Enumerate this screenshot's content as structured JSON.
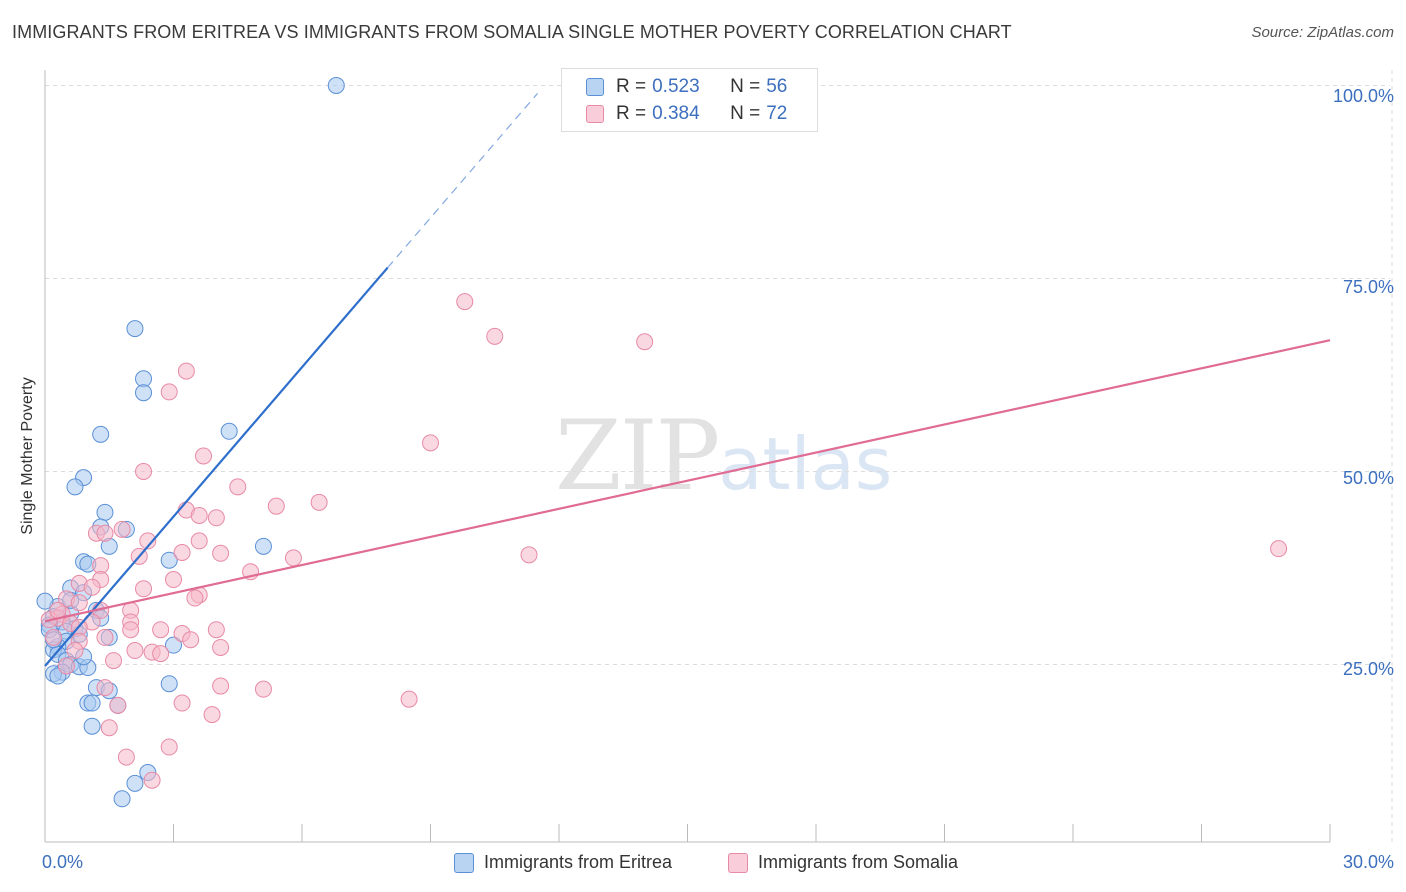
{
  "title": "IMMIGRANTS FROM ERITREA VS IMMIGRANTS FROM SOMALIA SINGLE MOTHER POVERTY CORRELATION CHART",
  "source": "Source: ZipAtlas.com",
  "watermark": {
    "zip": "ZIP",
    "atlas": "atlas"
  },
  "colors": {
    "eritrea_fill": "#a8c8f0",
    "eritrea_stroke": "#5b90d6",
    "eritrea_line": "#2f6fcc",
    "somalia_fill": "#f5b8c9",
    "somalia_stroke": "#e78aa6",
    "somalia_line": "#e06b93",
    "tick_text": "#3c6fbe",
    "grid": "#dcdcdc"
  },
  "legend_top": [
    {
      "r_label": "R =",
      "r_value": "0.523",
      "n_label": "N =",
      "n_value": "56"
    },
    {
      "r_label": "R =",
      "r_value": "0.384",
      "n_label": "N =",
      "n_value": "72"
    }
  ],
  "legend_bottom": [
    "Immigrants from Eritrea",
    "Immigrants from Somalia"
  ],
  "chart_data": {
    "type": "scatter",
    "title": "IMMIGRANTS FROM ERITREA VS IMMIGRANTS FROM SOMALIA SINGLE MOTHER POVERTY CORRELATION CHART",
    "xlabel": "",
    "ylabel": "Single Mother Poverty",
    "xlim": [
      0,
      30
    ],
    "ylim": [
      2,
      102
    ],
    "x_ticks_labeled": [
      "0.0%",
      "30.0%"
    ],
    "y_ticks": [
      {
        "value": 25,
        "label": "25.0%"
      },
      {
        "value": 50,
        "label": "50.0%"
      },
      {
        "value": 75,
        "label": "75.0%"
      },
      {
        "value": 100,
        "label": "100.0%"
      }
    ],
    "grid": true,
    "legend_position": "bottom",
    "series": [
      {
        "name": "Immigrants from Eritrea",
        "r": 0.523,
        "n": 56,
        "trend": {
          "x0": 0.0,
          "y0": 24.8,
          "x1": 8.0,
          "y1": 76.4,
          "dashed_to_x": 11.5
        },
        "points": [
          [
            6.8,
            100.0
          ],
          [
            2.1,
            68.5
          ],
          [
            2.3,
            62.0
          ],
          [
            2.3,
            60.2
          ],
          [
            4.3,
            55.2
          ],
          [
            1.3,
            54.8
          ],
          [
            0.9,
            49.2
          ],
          [
            0.7,
            48.0
          ],
          [
            1.4,
            44.7
          ],
          [
            1.9,
            42.5
          ],
          [
            1.3,
            42.8
          ],
          [
            5.1,
            40.3
          ],
          [
            1.5,
            40.3
          ],
          [
            0.9,
            38.3
          ],
          [
            1.0,
            38.0
          ],
          [
            2.9,
            38.5
          ],
          [
            0.6,
            34.9
          ],
          [
            0.9,
            34.3
          ],
          [
            0.3,
            32.5
          ],
          [
            1.2,
            32.0
          ],
          [
            0.6,
            31.6
          ],
          [
            0.2,
            31.2
          ],
          [
            1.3,
            31.0
          ],
          [
            0.4,
            30.5
          ],
          [
            0.1,
            30.1
          ],
          [
            0.7,
            29.6
          ],
          [
            0.5,
            29.3
          ],
          [
            0.8,
            28.9
          ],
          [
            1.5,
            28.5
          ],
          [
            0.5,
            28.0
          ],
          [
            0.3,
            27.3
          ],
          [
            3.0,
            27.5
          ],
          [
            0.2,
            26.9
          ],
          [
            0.3,
            26.3
          ],
          [
            0.5,
            25.5
          ],
          [
            0.6,
            25.0
          ],
          [
            0.8,
            24.7
          ],
          [
            1.0,
            24.6
          ],
          [
            0.4,
            24.0
          ],
          [
            0.2,
            23.8
          ],
          [
            0.3,
            23.5
          ],
          [
            2.9,
            22.5
          ],
          [
            1.2,
            22.0
          ],
          [
            1.5,
            21.6
          ],
          [
            1.0,
            20.0
          ],
          [
            1.1,
            20.0
          ],
          [
            1.7,
            19.7
          ],
          [
            1.1,
            17.0
          ],
          [
            2.4,
            11.0
          ],
          [
            2.1,
            9.6
          ],
          [
            1.8,
            7.6
          ],
          [
            0.0,
            33.2
          ],
          [
            0.1,
            29.5
          ],
          [
            0.2,
            28.2
          ],
          [
            0.6,
            33.3
          ],
          [
            0.9,
            26.0
          ]
        ]
      },
      {
        "name": "Immigrants from Somalia",
        "r": 0.384,
        "n": 72,
        "trend": {
          "x0": 0.0,
          "y0": 30.6,
          "x1": 30.0,
          "y1": 67.0
        },
        "points": [
          [
            9.8,
            72.0
          ],
          [
            10.5,
            67.5
          ],
          [
            14.0,
            66.8
          ],
          [
            3.3,
            63.0
          ],
          [
            2.9,
            60.3
          ],
          [
            9.0,
            53.7
          ],
          [
            3.7,
            52.0
          ],
          [
            2.3,
            50.0
          ],
          [
            4.5,
            48.0
          ],
          [
            6.4,
            46.0
          ],
          [
            5.4,
            45.5
          ],
          [
            3.3,
            45.0
          ],
          [
            3.6,
            44.3
          ],
          [
            4.0,
            44.0
          ],
          [
            1.8,
            42.5
          ],
          [
            1.2,
            42.0
          ],
          [
            1.4,
            42.0
          ],
          [
            2.4,
            41.0
          ],
          [
            3.6,
            41.0
          ],
          [
            28.8,
            40.0
          ],
          [
            11.3,
            39.2
          ],
          [
            3.2,
            39.5
          ],
          [
            4.1,
            39.4
          ],
          [
            2.2,
            39.0
          ],
          [
            5.8,
            38.8
          ],
          [
            4.8,
            37.0
          ],
          [
            1.3,
            37.8
          ],
          [
            3.0,
            36.0
          ],
          [
            1.3,
            36.0
          ],
          [
            0.8,
            35.5
          ],
          [
            2.3,
            34.8
          ],
          [
            1.1,
            35.0
          ],
          [
            3.6,
            34.0
          ],
          [
            3.5,
            33.6
          ],
          [
            0.5,
            33.5
          ],
          [
            0.8,
            33.0
          ],
          [
            1.3,
            32.0
          ],
          [
            2.0,
            32.0
          ],
          [
            0.4,
            31.5
          ],
          [
            0.3,
            31.0
          ],
          [
            1.1,
            30.5
          ],
          [
            2.0,
            30.5
          ],
          [
            0.6,
            30.3
          ],
          [
            0.8,
            29.8
          ],
          [
            2.0,
            29.5
          ],
          [
            2.7,
            29.5
          ],
          [
            4.0,
            29.5
          ],
          [
            3.2,
            29.0
          ],
          [
            1.4,
            28.5
          ],
          [
            0.2,
            28.5
          ],
          [
            3.4,
            28.2
          ],
          [
            0.8,
            28.0
          ],
          [
            4.1,
            27.2
          ],
          [
            0.7,
            26.8
          ],
          [
            2.1,
            26.8
          ],
          [
            2.5,
            26.6
          ],
          [
            2.7,
            26.4
          ],
          [
            1.6,
            25.5
          ],
          [
            0.5,
            24.8
          ],
          [
            1.4,
            22.0
          ],
          [
            4.1,
            22.2
          ],
          [
            5.1,
            21.8
          ],
          [
            8.5,
            20.5
          ],
          [
            3.2,
            20.0
          ],
          [
            1.7,
            19.7
          ],
          [
            3.9,
            18.5
          ],
          [
            1.5,
            16.8
          ],
          [
            2.9,
            14.3
          ],
          [
            1.9,
            13.0
          ],
          [
            2.5,
            10.0
          ],
          [
            0.1,
            30.8
          ],
          [
            0.3,
            32.0
          ]
        ]
      }
    ]
  }
}
